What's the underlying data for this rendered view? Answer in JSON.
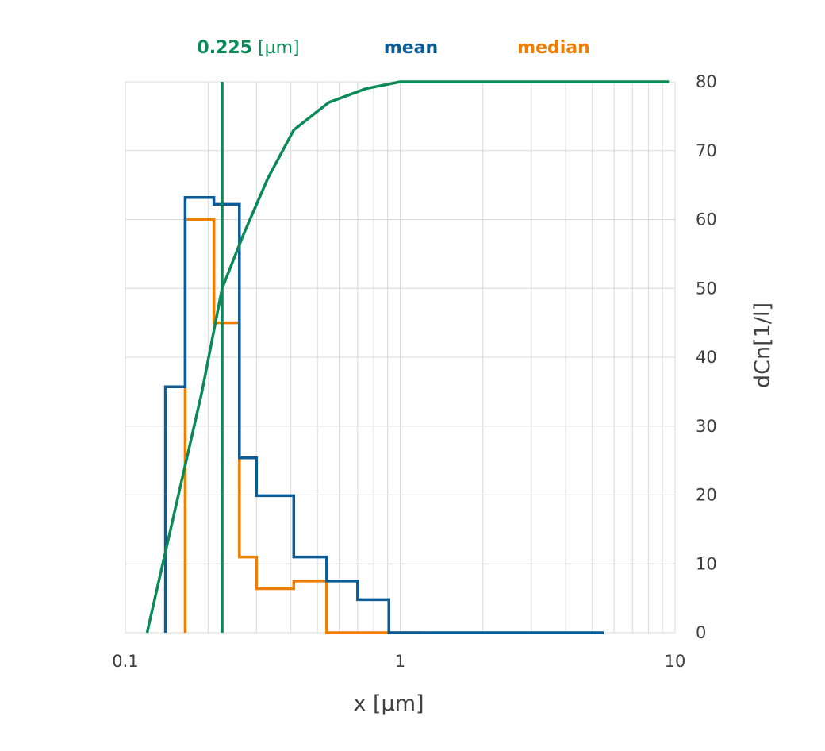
{
  "colors": {
    "mean": "#0b5c96",
    "median": "#ef7d00",
    "cumulative": "#0a8a57",
    "grid": "#d9d9d9",
    "text": "#404040"
  },
  "legend": {
    "marker_value": "0.225",
    "marker_unit": " [µm]",
    "mean": "mean",
    "median": "median"
  },
  "chart_data": {
    "type": "line",
    "xlabel": "x [µm]",
    "ylabel": "dCn[1/l]",
    "x_scale": "log",
    "xlim": [
      0.1,
      10
    ],
    "ylim": [
      0,
      80
    ],
    "grid": true,
    "x_ticks": [
      {
        "value": 0.1,
        "label": "0.1"
      },
      {
        "value": 1,
        "label": "1"
      },
      {
        "value": 10,
        "label": "10"
      }
    ],
    "y_ticks": [
      0,
      10,
      20,
      30,
      40,
      50,
      60,
      70,
      80
    ],
    "marker_line": {
      "x": 0.225,
      "label": "0.225"
    },
    "series": [
      {
        "name": "mean",
        "style": "step",
        "x": [
          0.14,
          0.14,
          0.165,
          0.165,
          0.21,
          0.21,
          0.26,
          0.26,
          0.3,
          0.3,
          0.41,
          0.41,
          0.54,
          0.54,
          0.7,
          0.7,
          0.91,
          0.91,
          1.19,
          1.19,
          5.5
        ],
        "y": [
          0,
          35.7,
          35.7,
          63.2,
          63.2,
          62.2,
          62.2,
          25.4,
          25.4,
          19.9,
          19.9,
          11,
          11,
          7.5,
          7.5,
          4.8,
          4.8,
          0,
          0,
          0,
          0
        ]
      },
      {
        "name": "median",
        "style": "step",
        "x": [
          0.165,
          0.165,
          0.21,
          0.21,
          0.26,
          0.26,
          0.3,
          0.3,
          0.41,
          0.41,
          0.54,
          0.54,
          0.7,
          0.7,
          0.91,
          0.91,
          1.19
        ],
        "y": [
          0,
          60,
          60,
          45,
          45,
          11,
          11,
          6.4,
          6.4,
          7.5,
          7.5,
          0,
          0,
          0,
          0,
          0,
          0
        ]
      },
      {
        "name": "cumulative",
        "style": "curve",
        "x": [
          0.12,
          0.15,
          0.19,
          0.225,
          0.27,
          0.33,
          0.41,
          0.55,
          0.75,
          1.0,
          2.0,
          5.0,
          9.5
        ],
        "y": [
          0,
          17,
          35,
          50,
          58,
          66,
          73,
          77,
          79,
          80,
          80,
          80,
          80
        ]
      }
    ]
  }
}
